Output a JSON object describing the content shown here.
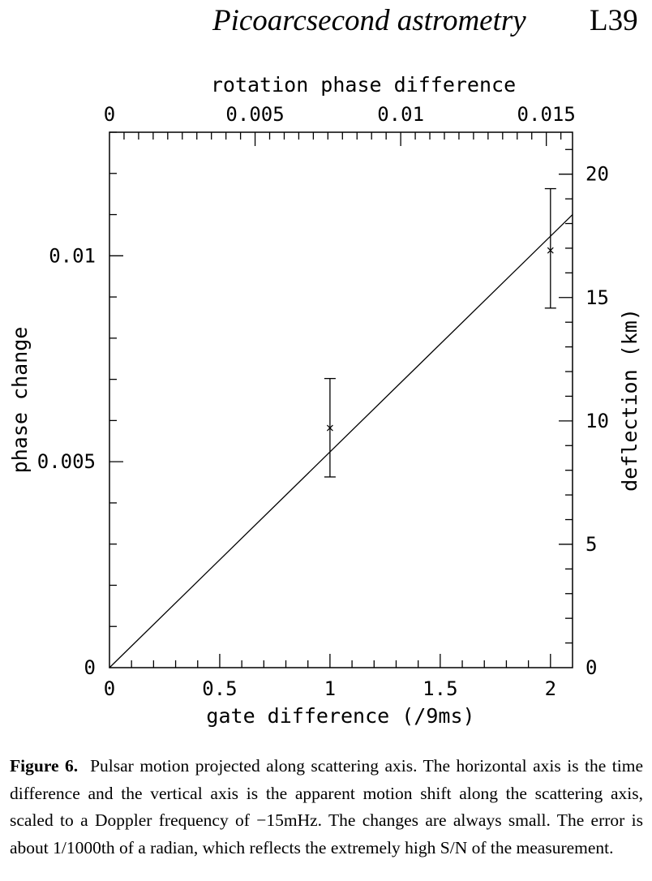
{
  "header": {
    "title": "Picoarcsecond astrometry",
    "page_number": "L39"
  },
  "chart_data": {
    "type": "scatter",
    "x_bottom": {
      "label": "gate difference (/9ms)",
      "lim": [
        0,
        2.1
      ],
      "ticks": [
        "0",
        "0.5",
        "1",
        "1.5",
        "2"
      ],
      "tick_values": [
        0,
        0.5,
        1,
        1.5,
        2
      ]
    },
    "x_top": {
      "label": "rotation phase difference",
      "lim": [
        0,
        0.0159
      ],
      "ticks": [
        "0",
        "0.005",
        "0.01",
        "0.015"
      ],
      "tick_values": [
        0,
        0.005,
        0.01,
        0.015
      ]
    },
    "y_left": {
      "label": "phase change",
      "lim": [
        0,
        0.013
      ],
      "ticks": [
        "0",
        "0.005",
        "0.01"
      ],
      "tick_values": [
        0,
        0.005,
        0.01
      ]
    },
    "y_right": {
      "label": "deflection (km)",
      "lim": [
        0,
        21.7
      ],
      "ticks": [
        "0",
        "5",
        "10",
        "15",
        "20"
      ],
      "tick_values": [
        0,
        5,
        10,
        15,
        20
      ]
    },
    "points": [
      {
        "x": 1,
        "y": 0.00582,
        "yerr_low": 0.00463,
        "yerr_high": 0.00702
      },
      {
        "x": 2,
        "y": 0.01013,
        "yerr_low": 0.00873,
        "yerr_high": 0.01163
      }
    ],
    "fit_line": {
      "x": [
        0,
        2.1
      ],
      "y": [
        0,
        0.011
      ]
    },
    "grid": false,
    "legend": "none"
  },
  "caption": {
    "label": "Figure 6.",
    "text": "Pulsar motion projected along scattering axis. The horizontal axis is the time difference and the vertical axis is the apparent motion shift along the scattering axis, scaled to a Doppler frequency of −15mHz. The changes are always small. The error is about 1/1000th of a radian, which reflects the extremely high S/N of the measurement."
  }
}
